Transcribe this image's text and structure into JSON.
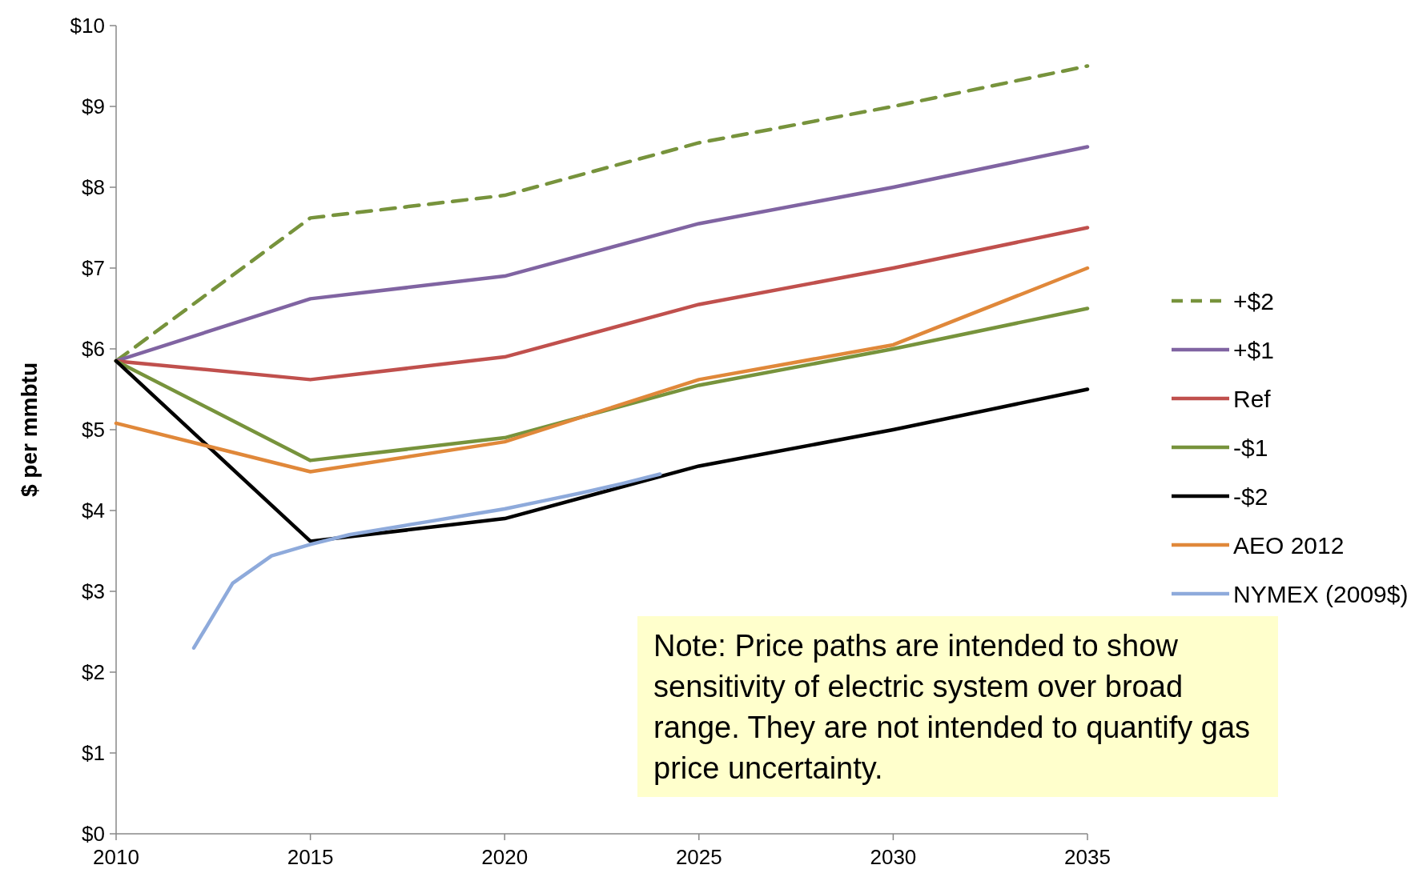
{
  "chart_data": {
    "type": "line",
    "ylabel": "$ per mmbtu",
    "xlim": [
      2010,
      2035
    ],
    "xticks": [
      2010,
      2015,
      2020,
      2025,
      2030,
      2035
    ],
    "ylim": [
      0,
      10
    ],
    "yticks": [
      {
        "value": 0,
        "label": "$0"
      },
      {
        "value": 1,
        "label": "$1"
      },
      {
        "value": 2,
        "label": "$2"
      },
      {
        "value": 3,
        "label": "$3"
      },
      {
        "value": 4,
        "label": "$4"
      },
      {
        "value": 5,
        "label": "$5"
      },
      {
        "value": 6,
        "label": "$6"
      },
      {
        "value": 7,
        "label": "$7"
      },
      {
        "value": 8,
        "label": "$8"
      },
      {
        "value": 9,
        "label": "$9"
      },
      {
        "value": 10,
        "label": "$10"
      }
    ],
    "legend": "right",
    "marker": "none",
    "x": [
      2010,
      2015,
      2020,
      2025,
      2030,
      2035
    ],
    "series": [
      {
        "name": "+$2",
        "color": "#77933c",
        "line_style": "dashed",
        "values": [
          5.85,
          7.62,
          7.9,
          8.55,
          9.0,
          9.5
        ]
      },
      {
        "name": "+$1",
        "color": "#8064a2",
        "values": [
          5.85,
          6.62,
          6.9,
          7.55,
          8.0,
          8.5
        ]
      },
      {
        "name": "Ref",
        "color": "#c0504d",
        "values": [
          5.85,
          5.62,
          5.9,
          6.55,
          7.0,
          7.5
        ]
      },
      {
        "name": "-$1",
        "color": "#77933c",
        "values": [
          5.85,
          4.62,
          4.9,
          5.55,
          6.0,
          6.5
        ]
      },
      {
        "name": "-$2",
        "color": "#000000",
        "values": [
          5.85,
          3.62,
          3.9,
          4.55,
          5.0,
          5.5
        ]
      },
      {
        "name": "AEO 2012",
        "color": "#e0883a",
        "values": [
          5.08,
          4.48,
          4.85,
          5.62,
          6.05,
          7.0
        ]
      },
      {
        "name": "NYMEX (2009$)",
        "color": "#8eaadb",
        "x": [
          2012,
          2013,
          2014,
          2015,
          2016,
          2017,
          2018,
          2019,
          2020,
          2021,
          2022,
          2023,
          2024
        ],
        "values": [
          2.3,
          3.1,
          3.44,
          3.58,
          3.7,
          3.78,
          3.86,
          3.94,
          4.02,
          4.12,
          4.22,
          4.33,
          4.45
        ]
      }
    ],
    "annotations": [
      "Note: Price paths are intended to show sensitivity of electric system over broad range.  They are not intended to quantify gas price uncertainty."
    ]
  }
}
